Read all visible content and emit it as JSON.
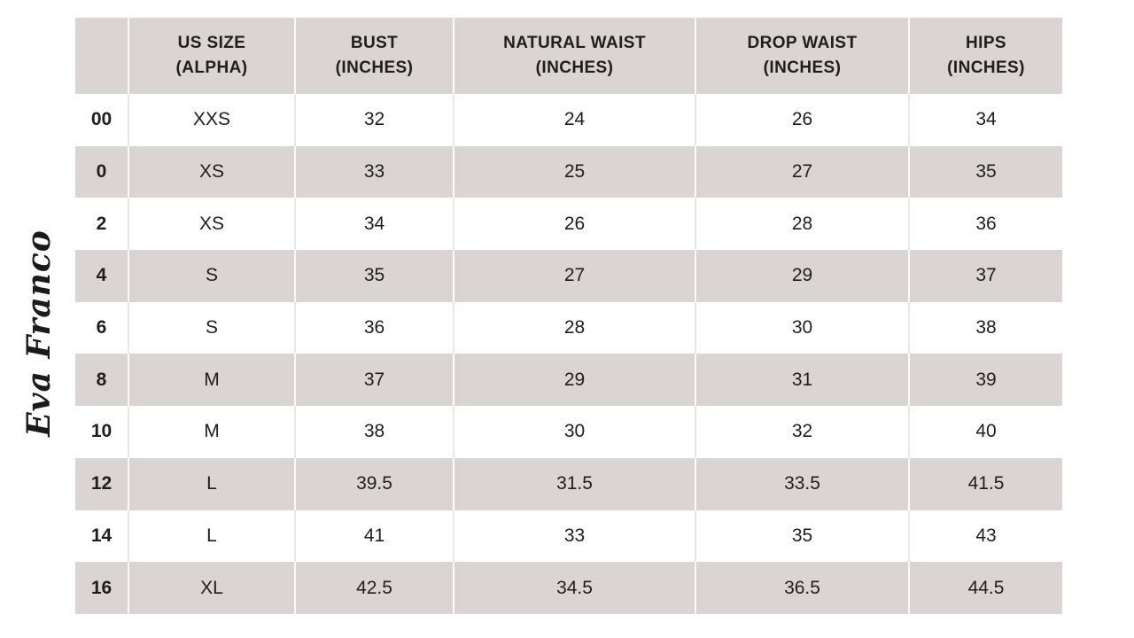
{
  "brand": {
    "logo_text": "Eva Franco"
  },
  "colors": {
    "row_shade": "#dad5d3",
    "text": "#1e1e1e",
    "background": "#ffffff"
  },
  "chart_data": {
    "type": "table",
    "title": "Eva Franco size chart"
  },
  "table": {
    "columns": [
      {
        "line1": "",
        "line2": ""
      },
      {
        "line1": "US SIZE",
        "line2": "(ALPHA)"
      },
      {
        "line1": "BUST",
        "line2": "(INCHES)"
      },
      {
        "line1": "NATURAL WAIST",
        "line2": "(INCHES)"
      },
      {
        "line1": "DROP WAIST",
        "line2": "(INCHES)"
      },
      {
        "line1": "HIPS",
        "line2": "(INCHES)"
      }
    ],
    "rows": [
      {
        "us_size": "00",
        "alpha": "XXS",
        "bust": "32",
        "natural_waist": "24",
        "drop_waist": "26",
        "hips": "34"
      },
      {
        "us_size": "0",
        "alpha": "XS",
        "bust": "33",
        "natural_waist": "25",
        "drop_waist": "27",
        "hips": "35"
      },
      {
        "us_size": "2",
        "alpha": "XS",
        "bust": "34",
        "natural_waist": "26",
        "drop_waist": "28",
        "hips": "36"
      },
      {
        "us_size": "4",
        "alpha": "S",
        "bust": "35",
        "natural_waist": "27",
        "drop_waist": "29",
        "hips": "37"
      },
      {
        "us_size": "6",
        "alpha": "S",
        "bust": "36",
        "natural_waist": "28",
        "drop_waist": "30",
        "hips": "38"
      },
      {
        "us_size": "8",
        "alpha": "M",
        "bust": "37",
        "natural_waist": "29",
        "drop_waist": "31",
        "hips": "39"
      },
      {
        "us_size": "10",
        "alpha": "M",
        "bust": "38",
        "natural_waist": "30",
        "drop_waist": "32",
        "hips": "40"
      },
      {
        "us_size": "12",
        "alpha": "L",
        "bust": "39.5",
        "natural_waist": "31.5",
        "drop_waist": "33.5",
        "hips": "41.5"
      },
      {
        "us_size": "14",
        "alpha": "L",
        "bust": "41",
        "natural_waist": "33",
        "drop_waist": "35",
        "hips": "43"
      },
      {
        "us_size": "16",
        "alpha": "XL",
        "bust": "42.5",
        "natural_waist": "34.5",
        "drop_waist": "36.5",
        "hips": "44.5"
      }
    ]
  }
}
